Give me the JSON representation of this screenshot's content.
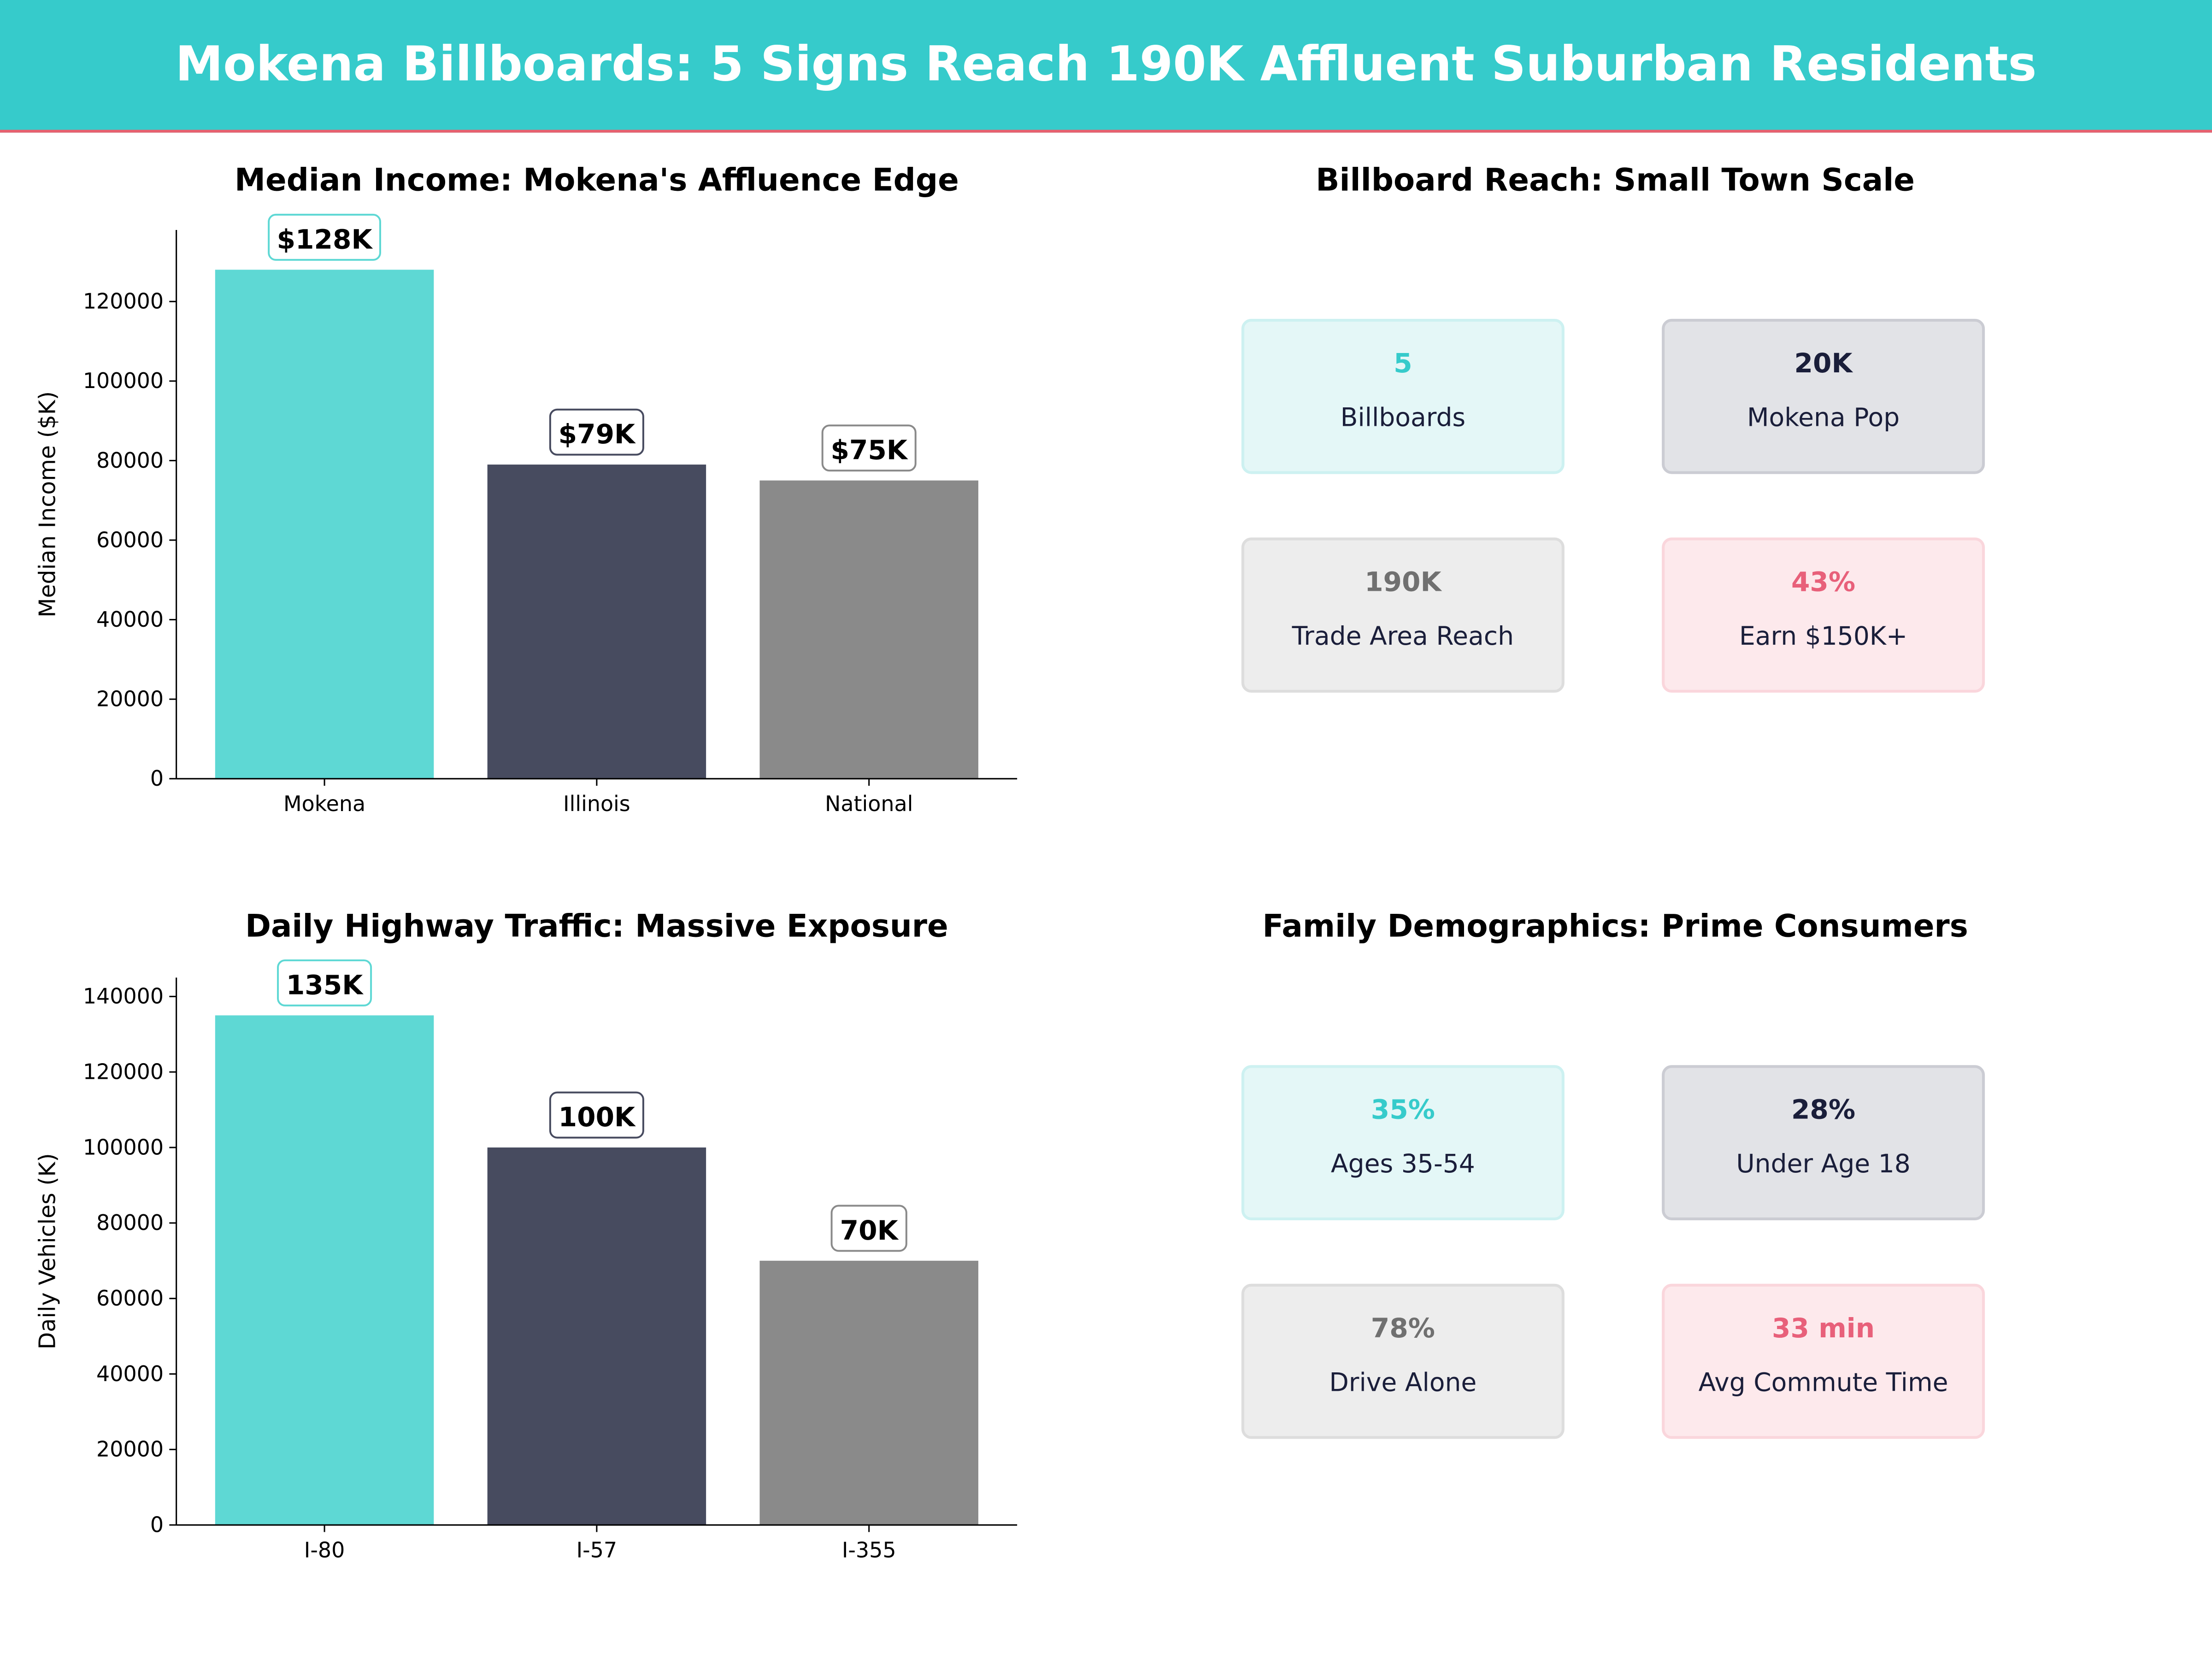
{
  "header": {
    "title": "Mokena Billboards: 5 Signs Reach 190K Affluent Suburban Residents"
  },
  "colors": {
    "teal": "#5ED8D4",
    "navy": "#474B5F",
    "gray": "#8A8A8A",
    "header_bg": "#36CBCB",
    "accent_line": "#E8606E"
  },
  "chart_data": [
    {
      "type": "bar",
      "title": "Median Income: Mokena's Affluence Edge",
      "xlabel": "",
      "ylabel": "Median Income ($K)",
      "categories": [
        "Mokena",
        "Illinois",
        "National"
      ],
      "values": [
        128000,
        79000,
        75000
      ],
      "data_labels": [
        "$128K",
        "$79K",
        "$75K"
      ],
      "bar_colors": [
        "#5ED8D4",
        "#474B5F",
        "#8A8A8A"
      ],
      "ylim": [
        0,
        138000
      ],
      "yticks": [
        0,
        20000,
        40000,
        60000,
        80000,
        100000,
        120000
      ],
      "grid": false
    },
    {
      "type": "bar",
      "title": "Daily Highway Traffic: Massive Exposure",
      "xlabel": "",
      "ylabel": "Daily Vehicles (K)",
      "categories": [
        "I-80",
        "I-57",
        "I-355"
      ],
      "values": [
        135000,
        100000,
        70000
      ],
      "data_labels": [
        "135K",
        "100K",
        "70K"
      ],
      "bar_colors": [
        "#5ED8D4",
        "#474B5F",
        "#8A8A8A"
      ],
      "ylim": [
        0,
        145000
      ],
      "yticks": [
        0,
        20000,
        40000,
        60000,
        80000,
        100000,
        120000,
        140000
      ],
      "grid": false
    }
  ],
  "reach": {
    "title": "Billboard Reach: Small Town Scale",
    "cards": [
      {
        "value": "5",
        "label": "Billboards"
      },
      {
        "value": "20K",
        "label": "Mokena Pop"
      },
      {
        "value": "190K",
        "label": "Trade Area Reach"
      },
      {
        "value": "43%",
        "label": "Earn $150K+"
      }
    ]
  },
  "demographics": {
    "title": "Family Demographics: Prime Consumers",
    "cards": [
      {
        "value": "35%",
        "label": "Ages 35-54"
      },
      {
        "value": "28%",
        "label": "Under Age 18"
      },
      {
        "value": "78%",
        "label": "Drive Alone"
      },
      {
        "value": "33 min",
        "label": "Avg Commute Time"
      }
    ]
  }
}
